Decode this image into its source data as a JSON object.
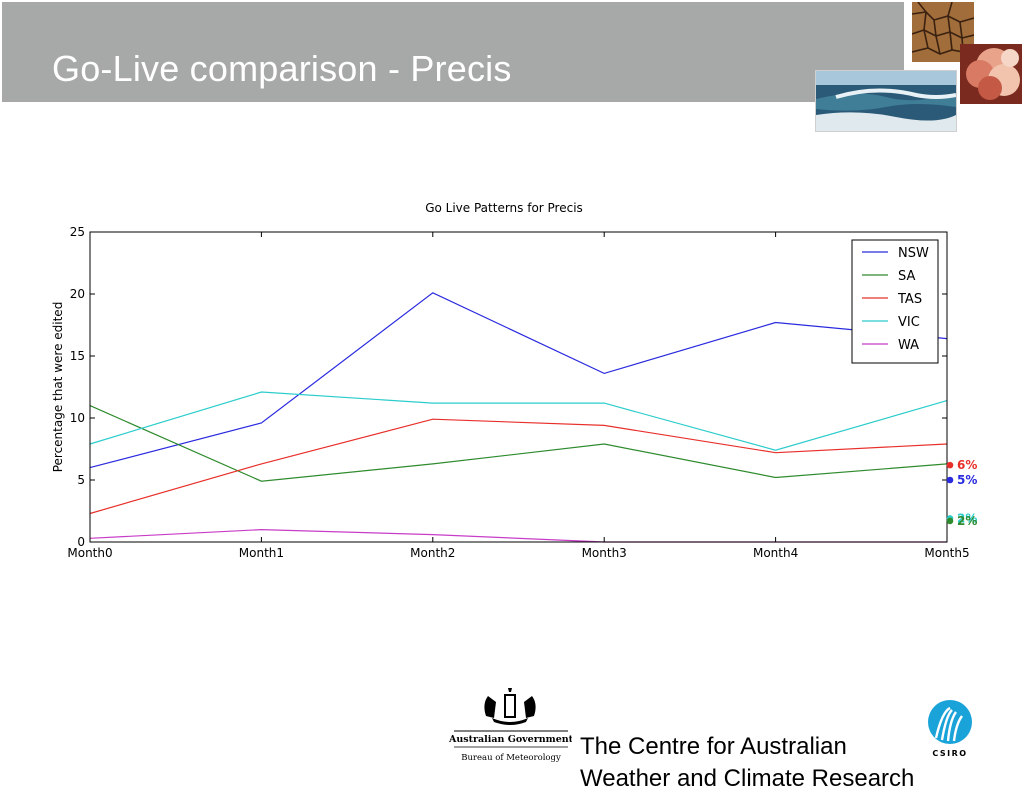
{
  "slide": {
    "title": "Go-Live comparison - Precis",
    "footer_text_line1": "The Centre for Australian",
    "footer_text_line2": "Weather and Climate Research"
  },
  "logos": {
    "gov_line1": "Australian Government",
    "gov_line2": "Bureau of Meteorology",
    "csiro": "CSIRO"
  },
  "chart_data": {
    "type": "line",
    "title": "Go Live Patterns for Precis",
    "ylabel": "Percentage that were edited",
    "xlabel": "",
    "categories": [
      "Month0",
      "Month1",
      "Month2",
      "Month3",
      "Month4",
      "Month5"
    ],
    "ylim": [
      0,
      25
    ],
    "yticks": [
      0,
      5,
      10,
      15,
      20,
      25
    ],
    "grid": false,
    "legend_position": "top-right",
    "series": [
      {
        "name": "NSW",
        "color": "#2a2adf",
        "values": [
          6.0,
          9.6,
          20.1,
          13.6,
          17.7,
          16.4
        ]
      },
      {
        "name": "SA",
        "color": "#2e8b2e",
        "values": [
          11.0,
          4.9,
          6.3,
          7.9,
          5.2,
          6.3
        ]
      },
      {
        "name": "TAS",
        "color": "#e8302b",
        "values": [
          2.3,
          6.3,
          9.9,
          9.4,
          7.2,
          7.9
        ]
      },
      {
        "name": "VIC",
        "color": "#2ccccc",
        "values": [
          7.9,
          12.1,
          11.2,
          11.2,
          7.4,
          11.4
        ]
      },
      {
        "name": "WA",
        "color": "#c83cc8",
        "values": [
          0.3,
          1.0,
          0.6,
          0.0,
          0.0,
          0.0
        ]
      }
    ],
    "annotations": [
      {
        "label": "6%",
        "series": "TAS",
        "value": 6.2,
        "color": "#e8302b"
      },
      {
        "label": "5%",
        "series": "NSW",
        "value": 5.0,
        "color": "#2a2adf"
      },
      {
        "label": "2%",
        "series": "VIC",
        "value": 1.9,
        "color": "#2ccccc"
      },
      {
        "label": "2%",
        "series": "SA",
        "value": 1.7,
        "color": "#2e8b2e"
      }
    ]
  }
}
